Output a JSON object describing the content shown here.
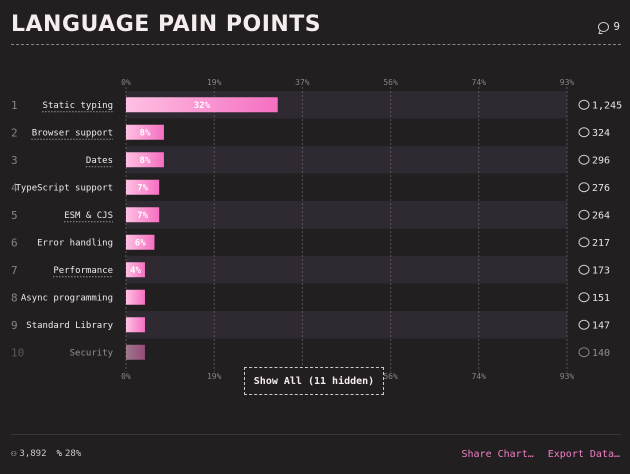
{
  "header": {
    "title": "LANGUAGE PAIN POINTS",
    "comments": "9"
  },
  "show_all_label": "Show All (11 hidden)",
  "footer": {
    "respondents": "3,892",
    "percent": "28%",
    "share_label": "Share Chart…",
    "export_label": "Export Data…"
  },
  "colors": {
    "bar_start": "#ffc0e3",
    "bar_end": "#f56fc1",
    "band": "#2f2a32"
  },
  "chart_data": {
    "type": "bar",
    "orientation": "horizontal",
    "xlim": [
      0,
      93
    ],
    "ticks": [
      "0%",
      "19%",
      "37%",
      "56%",
      "74%",
      "93%"
    ],
    "tick_values": [
      0,
      18.6,
      37.2,
      55.8,
      74.4,
      93
    ],
    "categories": [
      "Static typing",
      "Browser support",
      "Dates",
      "TypeScript support",
      "ESM & CJS",
      "Error handling",
      "Performance",
      "Async programming",
      "Standard Library",
      "Security"
    ],
    "values": [
      32,
      8,
      8,
      7,
      7,
      6,
      4,
      4,
      4,
      4
    ],
    "value_labels": [
      "32%",
      "8%",
      "8%",
      "7%",
      "7%",
      "6%",
      "4%",
      "",
      "",
      ""
    ],
    "counts": [
      "1,245",
      "324",
      "296",
      "276",
      "264",
      "217",
      "173",
      "151",
      "147",
      "140"
    ],
    "underlined": [
      true,
      true,
      true,
      false,
      true,
      false,
      true,
      false,
      false,
      false
    ],
    "faded_last": true,
    "grid": true
  }
}
